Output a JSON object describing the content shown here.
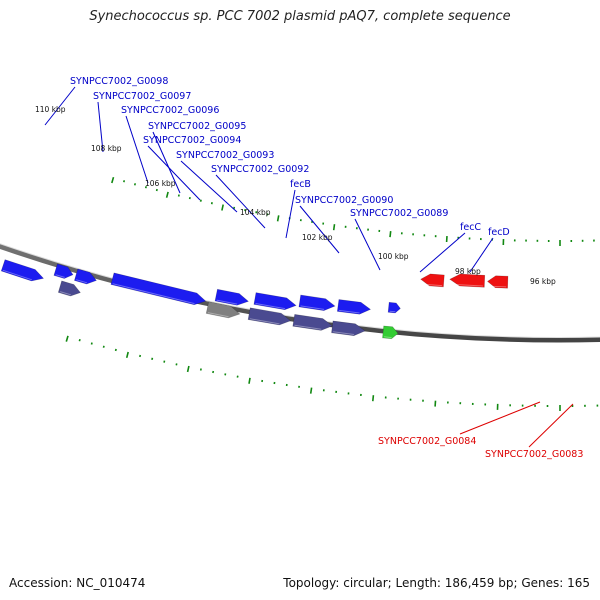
{
  "title": "Synechococcus sp. PCC 7002 plasmid pAQ7, complete sequence",
  "footer": {
    "accession": "Accession: NC_010474",
    "stats": "Topology: circular; Length: 186,459 bp; Genes: 165"
  },
  "colors": {
    "forward_gene": "#1c1cf0",
    "forward_gene_dim": "#4a4a90",
    "gray_gene": "#808080",
    "green_gene": "#33cc33",
    "reverse_gene": "#ee1111",
    "tick_marks": "#118811",
    "backbone": "#777777",
    "label_blue": "#0000c8",
    "label_red": "#dd0000"
  },
  "kbp_ticks": [
    "110 kbp",
    "108 kbp",
    "106 kbp",
    "104 kbp",
    "102 kbp",
    "100 kbp",
    "98 kbp",
    "96 kbp"
  ],
  "gene_labels": [
    "SYNPCC7002_G0098",
    "SYNPCC7002_G0097",
    "SYNPCC7002_G0096",
    "SYNPCC7002_G0095",
    "SYNPCC7002_G0094",
    "SYNPCC7002_G0093",
    "SYNPCC7002_G0092",
    "fecB",
    "SYNPCC7002_G0090",
    "SYNPCC7002_G0089",
    "fecC",
    "fecD"
  ],
  "reverse_labels": [
    "SYNPCC7002_G0084",
    "SYNPCC7002_G0083"
  ]
}
